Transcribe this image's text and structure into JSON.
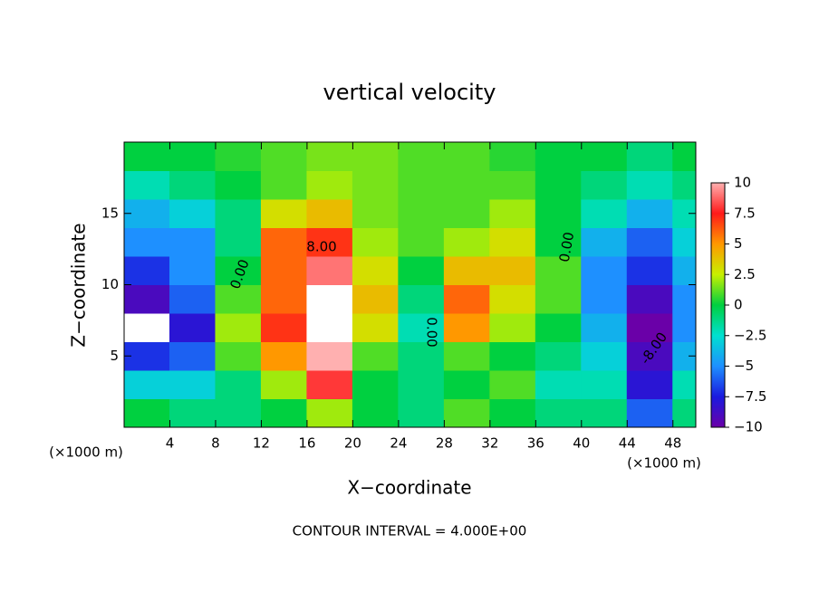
{
  "chart_data": {
    "type": "contour",
    "title": "vertical velocity",
    "xlabel": "X−coordinate",
    "ylabel": "Z−coordinate",
    "x_unit": "(×1000 m)",
    "footnote": "CONTOUR INTERVAL = 4.000E+00",
    "contour_labels": [
      "8.00",
      "0.00",
      "0.00",
      "0.00",
      "-8.00"
    ],
    "xlim": [
      0,
      50
    ],
    "ylim": [
      0,
      20
    ],
    "xticks": [
      4,
      8,
      12,
      16,
      20,
      24,
      28,
      32,
      36,
      40,
      44,
      48
    ],
    "yticks": [
      5,
      10,
      15
    ],
    "x": [
      2,
      6,
      10,
      14,
      18,
      22,
      26,
      30,
      34,
      38,
      42,
      46,
      50
    ],
    "y": [
      1,
      3,
      5,
      7,
      9,
      11,
      13,
      15,
      17,
      19
    ],
    "z": [
      [
        0,
        -1,
        -1,
        0,
        2,
        0,
        -1,
        1,
        0,
        -1,
        -1,
        -6,
        -1
      ],
      [
        -3,
        -3,
        -1,
        2,
        8,
        0,
        -1,
        0,
        1,
        -2,
        -2,
        -8,
        -2
      ],
      [
        -7,
        -6,
        1,
        5,
        10,
        1,
        -1,
        1,
        0,
        -1,
        -3,
        -9,
        -4
      ],
      [
        -11,
        -8,
        2,
        7,
        11,
        3,
        -2,
        5,
        2,
        0,
        -4,
        -10,
        -5
      ],
      [
        -9,
        -6,
        1,
        6,
        11,
        4,
        -1,
        6,
        3,
        1,
        -5,
        -9,
        -5
      ],
      [
        -7,
        -5,
        0,
        6,
        9,
        3,
        0,
        4,
        4,
        1,
        -5,
        -7,
        -4
      ],
      [
        -5,
        -5,
        -1,
        6,
        7,
        2,
        1,
        2,
        3,
        0,
        -4,
        -6,
        -3
      ],
      [
        -4,
        -3,
        -1,
        3,
        4,
        1.5,
        1,
        1,
        2,
        0,
        -2,
        -4,
        -2
      ],
      [
        -2,
        -1,
        0,
        1,
        2,
        1.5,
        1,
        1,
        1,
        0,
        -1,
        -2,
        -1
      ],
      [
        0,
        0,
        0.5,
        1,
        1.5,
        1.5,
        1,
        1,
        0.5,
        0,
        0,
        -1,
        0
      ]
    ],
    "clim": [
      -10,
      10
    ],
    "colormap": [
      "#6a00a8",
      "#1a1adf",
      "#1e90ff",
      "#00e0d0",
      "#00d040",
      "#c8f000",
      "#ff9800",
      "#ff1a1a",
      "#ffb0b0"
    ],
    "over_color": "#ffffff",
    "cbar_ticks": [
      10,
      7.5,
      5,
      2.5,
      0,
      {
        "value": -2.5,
        "label": "−2.5"
      },
      {
        "value": -5,
        "label": "−5"
      },
      {
        "value": -7.5,
        "label": "−7.5"
      },
      {
        "value": -10,
        "label": "−10"
      }
    ]
  }
}
